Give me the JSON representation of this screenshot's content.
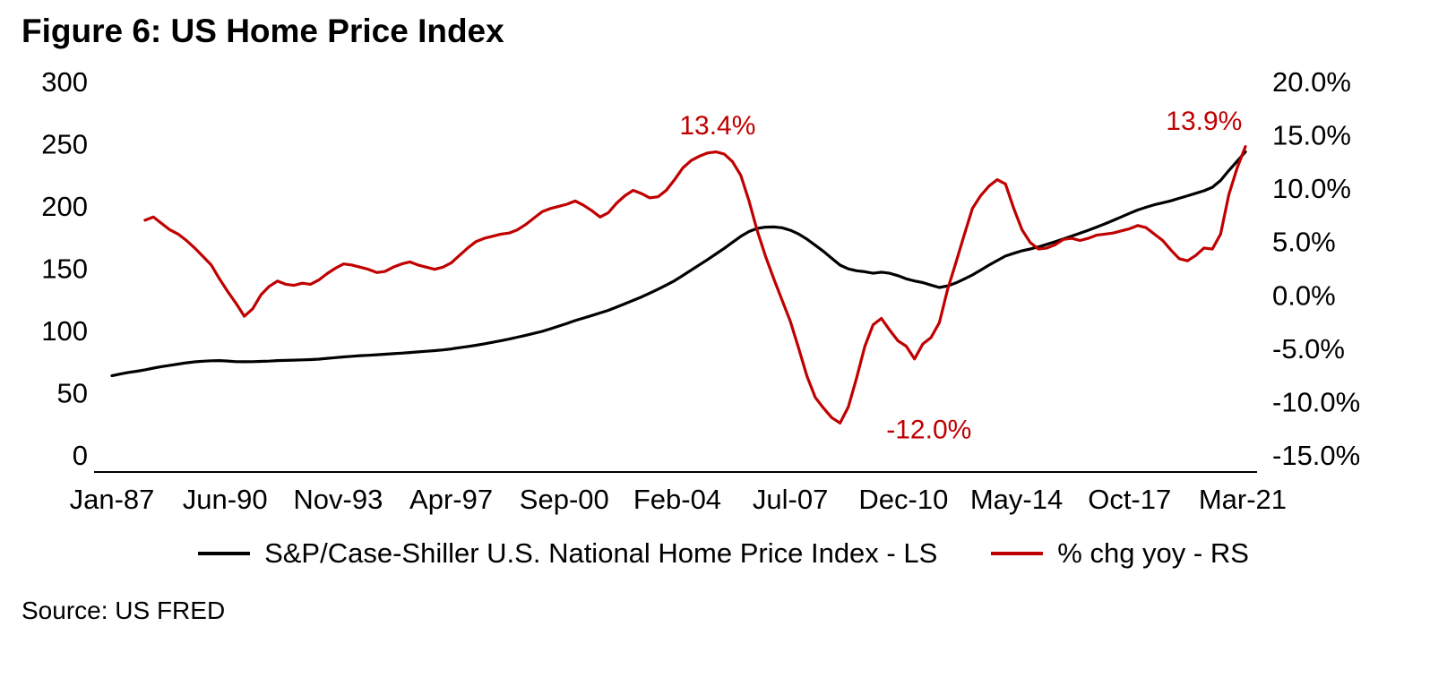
{
  "figure": {
    "title": "Figure 6: US Home Price Index",
    "source": "Source: US FRED"
  },
  "chart_data": {
    "type": "line",
    "title": "Figure 6: US Home Price Index",
    "grid": false,
    "legend_position": "bottom-center",
    "left_axis": {
      "range": [
        0,
        300
      ],
      "ticks": [
        "300",
        "250",
        "200",
        "150",
        "100",
        "50",
        "0"
      ]
    },
    "right_axis": {
      "range": [
        -15,
        20
      ],
      "ticks": [
        "20.0%",
        "15.0%",
        "10.0%",
        "5.0%",
        "0.0%",
        "-5.0%",
        "-10.0%",
        "-15.0%"
      ]
    },
    "x_axis": {
      "tick_labels": [
        "Jan-87",
        "Jun-90",
        "Nov-93",
        "Apr-97",
        "Sep-00",
        "Feb-04",
        "Jul-07",
        "Dec-10",
        "May-14",
        "Oct-17",
        "Mar-21"
      ],
      "tick_positions_years": [
        1987.0,
        1990.417,
        1993.833,
        1997.25,
        2000.667,
        2004.083,
        2007.5,
        2010.917,
        2014.333,
        2017.75,
        2021.167
      ],
      "range_years": [
        1987.0,
        2021.25
      ]
    },
    "series": [
      {
        "name": "S&P/Case-Shiller U.S. National Home Price Index - LS",
        "axis": "left",
        "color": "#000000",
        "x_start": 1987.0,
        "x_step": 0.25,
        "values": [
          63.7,
          65.0,
          66.3,
          67.3,
          68.4,
          69.8,
          71.0,
          72.0,
          73.0,
          74.0,
          74.8,
          75.3,
          75.7,
          75.8,
          75.5,
          75.0,
          74.9,
          75.0,
          75.2,
          75.4,
          75.8,
          76.0,
          76.2,
          76.4,
          76.6,
          77.0,
          77.6,
          78.2,
          78.8,
          79.3,
          79.8,
          80.1,
          80.5,
          80.9,
          81.4,
          81.8,
          82.3,
          82.8,
          83.3,
          83.8,
          84.4,
          85.2,
          86.2,
          87.1,
          88.1,
          89.3,
          90.5,
          91.8,
          93.1,
          94.6,
          96.1,
          97.7,
          99.3,
          101.4,
          103.5,
          105.7,
          108.0,
          110.0,
          112.0,
          114.1,
          116.2,
          118.8,
          121.5,
          124.2,
          126.9,
          130.0,
          133.2,
          136.5,
          140.0,
          144.2,
          148.5,
          152.7,
          157.0,
          161.5,
          166.0,
          170.8,
          175.6,
          179.5,
          182.0,
          183.0,
          183.2,
          182.5,
          180.5,
          177.5,
          173.4,
          168.5,
          163.5,
          158.0,
          152.5,
          149.5,
          148.0,
          147.2,
          146.0,
          146.8,
          146.0,
          144.0,
          141.5,
          139.8,
          138.5,
          136.5,
          134.5,
          135.8,
          138.2,
          141.3,
          144.6,
          148.5,
          152.5,
          156.2,
          159.8,
          162.0,
          164.0,
          165.5,
          167.2,
          169.2,
          171.3,
          173.5,
          175.8,
          178.1,
          180.5,
          183.0,
          185.6,
          188.4,
          191.2,
          194.1,
          196.8,
          199.0,
          201.0,
          202.6,
          204.2,
          206.2,
          208.2,
          210.2,
          212.2,
          215.0,
          220.5,
          228.5,
          236.0,
          243.5
        ]
      },
      {
        "name": "% chg yoy - RS",
        "axis": "right",
        "color": "#c00000",
        "x_start": 1988.0,
        "x_step": 0.25,
        "values": [
          7.0,
          7.3,
          6.7,
          6.1,
          5.7,
          5.1,
          4.4,
          3.6,
          2.8,
          1.5,
          0.3,
          -0.8,
          -2.0,
          -1.3,
          0.0,
          0.8,
          1.3,
          1.0,
          0.9,
          1.1,
          1.0,
          1.4,
          2.0,
          2.5,
          2.9,
          2.8,
          2.6,
          2.4,
          2.1,
          2.2,
          2.6,
          2.9,
          3.1,
          2.8,
          2.6,
          2.4,
          2.6,
          3.0,
          3.7,
          4.4,
          5.0,
          5.3,
          5.5,
          5.7,
          5.8,
          6.1,
          6.6,
          7.2,
          7.8,
          8.1,
          8.3,
          8.5,
          8.8,
          8.4,
          7.9,
          7.3,
          7.7,
          8.6,
          9.3,
          9.8,
          9.5,
          9.1,
          9.2,
          9.8,
          10.8,
          11.9,
          12.6,
          13.0,
          13.3,
          13.4,
          13.2,
          12.5,
          11.2,
          8.8,
          6.0,
          3.6,
          1.5,
          -0.5,
          -2.5,
          -5.0,
          -7.6,
          -9.6,
          -10.6,
          -11.5,
          -12.0,
          -10.5,
          -7.8,
          -4.8,
          -2.8,
          -2.2,
          -3.3,
          -4.3,
          -4.8,
          -6.0,
          -4.6,
          -4.0,
          -2.6,
          0.5,
          3.0,
          5.6,
          8.1,
          9.3,
          10.2,
          10.8,
          10.4,
          8.1,
          6.1,
          4.9,
          4.3,
          4.4,
          4.7,
          5.2,
          5.3,
          5.1,
          5.3,
          5.6,
          5.7,
          5.8,
          6.0,
          6.2,
          6.5,
          6.3,
          5.7,
          5.1,
          4.2,
          3.4,
          3.2,
          3.7,
          4.4,
          4.3,
          5.7,
          9.4,
          11.9,
          13.9
        ]
      }
    ],
    "annotations": [
      {
        "text": "13.4%",
        "x": 2005.3,
        "value": 15.9,
        "anchor": "middle"
      },
      {
        "text": "-12.0%",
        "x": 2010.4,
        "value": -12.6,
        "anchor": "start"
      },
      {
        "text": "13.9%",
        "x": 2020.0,
        "value": 16.3,
        "anchor": "middle"
      }
    ],
    "legend": [
      {
        "label": "S&P/Case-Shiller U.S. National Home Price Index - LS",
        "color": "#000000"
      },
      {
        "label": "% chg yoy - RS",
        "color": "#c00000"
      }
    ]
  }
}
